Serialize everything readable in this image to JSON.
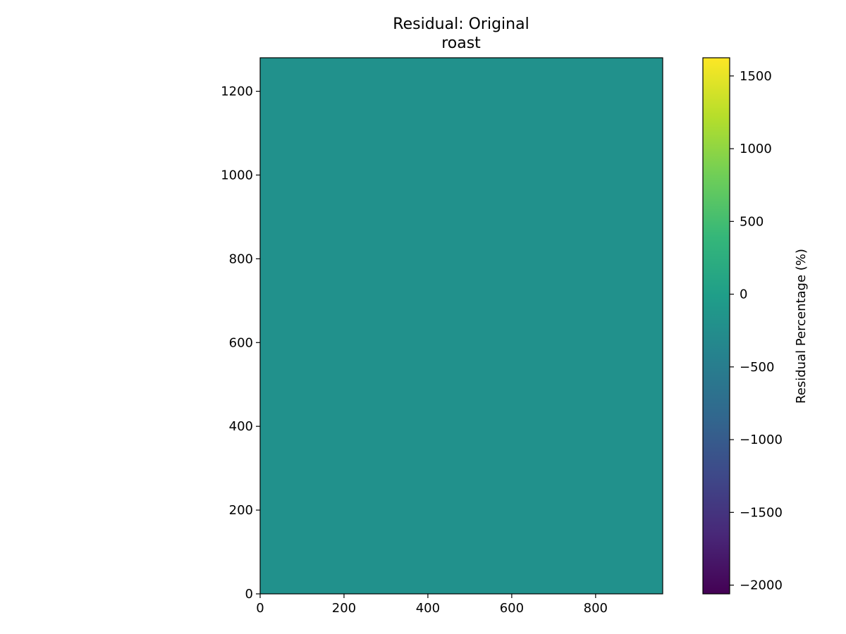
{
  "chart_data": {
    "type": "heatmap",
    "title": [
      "Residual: Original",
      "roast"
    ],
    "x_ticks": [
      "0",
      "200",
      "400",
      "600",
      "800"
    ],
    "x_tick_values": [
      0,
      200,
      400,
      600,
      800
    ],
    "xlim": [
      0,
      960
    ],
    "y_ticks": [
      "0",
      "200",
      "400",
      "600",
      "800",
      "1000",
      "1200"
    ],
    "y_tick_values": [
      0,
      200,
      400,
      600,
      800,
      1000,
      1200
    ],
    "ylim": [
      0,
      1280
    ],
    "colormap": "viridis",
    "dominant_value": 0,
    "dominant_color": "#21918c",
    "colorbar": {
      "label": "Residual Percentage (%)",
      "ticks": [
        "−2000",
        "−1500",
        "−1000",
        "−500",
        "0",
        "500",
        "1000",
        "1500"
      ],
      "tick_values": [
        -2000,
        -1500,
        -1000,
        -500,
        0,
        500,
        1000,
        1500
      ],
      "vmin": -2060,
      "vmax": 1625,
      "stops": [
        "#440154",
        "#482878",
        "#3e4989",
        "#31688e",
        "#26828e",
        "#1f9e89",
        "#35b779",
        "#6ece58",
        "#b5de2b",
        "#fde725"
      ]
    },
    "grid": false
  }
}
